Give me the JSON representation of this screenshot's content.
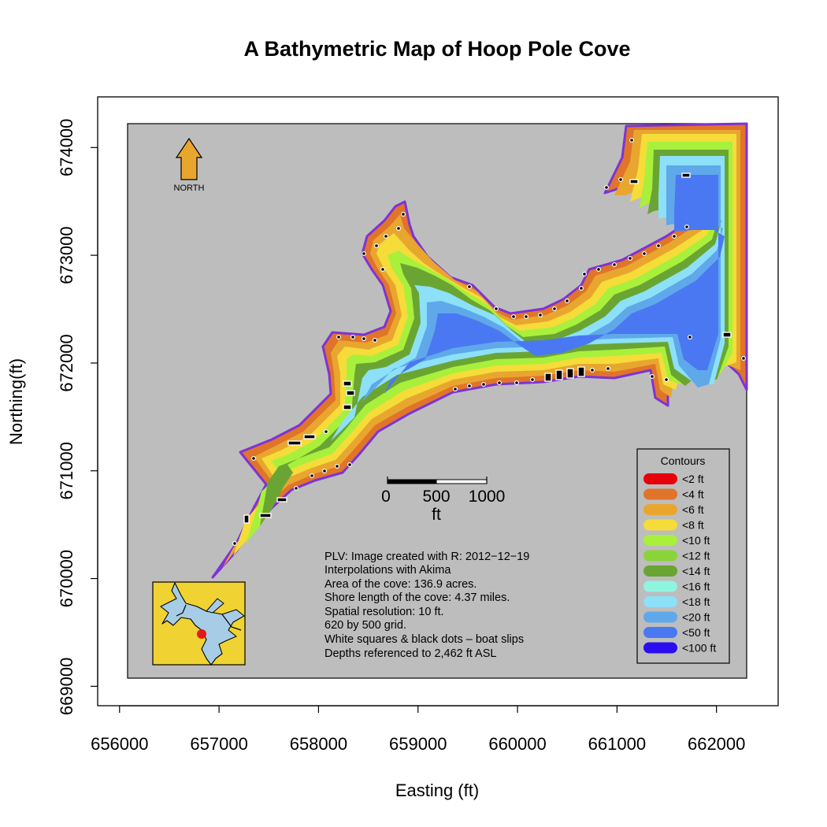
{
  "chart_data": {
    "type": "map",
    "title": "A Bathymetric Map of  Hoop Pole Cove",
    "xlabel": "Easting (ft)",
    "ylabel": "Northing(ft)",
    "x_ticks": [
      656000,
      657000,
      658000,
      659000,
      660000,
      661000,
      662000
    ],
    "y_ticks": [
      669000,
      670000,
      671000,
      672000,
      673000,
      674000
    ],
    "xlim": [
      655780,
      662620
    ],
    "ylim": [
      668820,
      674470
    ],
    "north_label": "NORTH",
    "scale_bar": {
      "labels": [
        "0",
        "500",
        "1000"
      ],
      "unit": "ft"
    },
    "notes": [
      "PLV: Image created with R: 2012−12−19",
      "Interpolations with Akima",
      "Area of the cove: 136.9 acres.",
      "Shore length of the cove: 4.37 miles.",
      "Spatial resolution: 10 ft.",
      "620 by 500 grid.",
      "White squares & black dots – boat slips",
      "Depths referenced to 2,462 ft ASL"
    ],
    "legend": {
      "title": "Contours",
      "position": "bottom-right",
      "entries": [
        {
          "label": "<2 ft",
          "color": "#e6000b"
        },
        {
          "label": "<4 ft",
          "color": "#e0742a"
        },
        {
          "label": "<6 ft",
          "color": "#e8a62f"
        },
        {
          "label": "<8 ft",
          "color": "#f5dc39"
        },
        {
          "label": "<10 ft",
          "color": "#a8f03c"
        },
        {
          "label": "<12 ft",
          "color": "#8ad43a"
        },
        {
          "label": "<14 ft",
          "color": "#6aa533"
        },
        {
          "label": "<16 ft",
          "color": "#90f5e0"
        },
        {
          "label": "<18 ft",
          "color": "#8ce0f8"
        },
        {
          "label": "<20 ft",
          "color": "#5fa8ea"
        },
        {
          "label": "<50 ft",
          "color": "#4a78f2"
        },
        {
          "label": "<100 ft",
          "color": "#2a0ef0"
        }
      ]
    },
    "colors": {
      "land": "#bdbdbd",
      "shoreline": "#7d33d6",
      "inset_land": "#f0d232",
      "inset_water": "#a6cce6",
      "inset_marker": "#e21a1a",
      "north_arrow": "#e8a62f"
    }
  }
}
